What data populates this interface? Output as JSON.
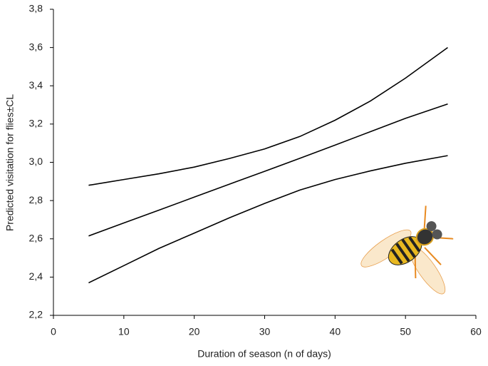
{
  "chart_data": {
    "type": "line",
    "xlabel": "Duration of season (n of days)",
    "ylabel": "Predicted visitation for flies±CL",
    "x": [
      5,
      10,
      15,
      20,
      25,
      30,
      35,
      40,
      45,
      50,
      56
    ],
    "series": [
      {
        "color": "#000000",
        "values": [
          2.88,
          2.91,
          2.94,
          2.975,
          3.02,
          3.07,
          3.135,
          3.22,
          3.32,
          3.44,
          3.6
        ]
      },
      {
        "color": "#000000",
        "values": [
          2.615,
          2.683,
          2.75,
          2.818,
          2.886,
          2.953,
          3.021,
          3.09,
          3.16,
          3.23,
          3.305
        ]
      },
      {
        "color": "#000000",
        "values": [
          2.37,
          2.46,
          2.55,
          2.63,
          2.71,
          2.785,
          2.855,
          2.91,
          2.955,
          2.995,
          3.035
        ]
      }
    ],
    "xlim": [
      0,
      60
    ],
    "xticks": [
      0,
      10,
      20,
      30,
      40,
      50,
      60
    ],
    "ylim": [
      2.2,
      3.8
    ],
    "yticks": [
      {
        "value": 2.2,
        "label": "2,2"
      },
      {
        "value": 2.4,
        "label": "2,4"
      },
      {
        "value": 2.6,
        "label": "2,6"
      },
      {
        "value": 2.8,
        "label": "2,8"
      },
      {
        "value": 3.0,
        "label": "3,0"
      },
      {
        "value": 3.2,
        "label": "3,2"
      },
      {
        "value": 3.4,
        "label": "3,4"
      },
      {
        "value": 3.6,
        "label": "3,6"
      },
      {
        "value": 3.8,
        "label": "3,8"
      }
    ],
    "grid": false
  }
}
